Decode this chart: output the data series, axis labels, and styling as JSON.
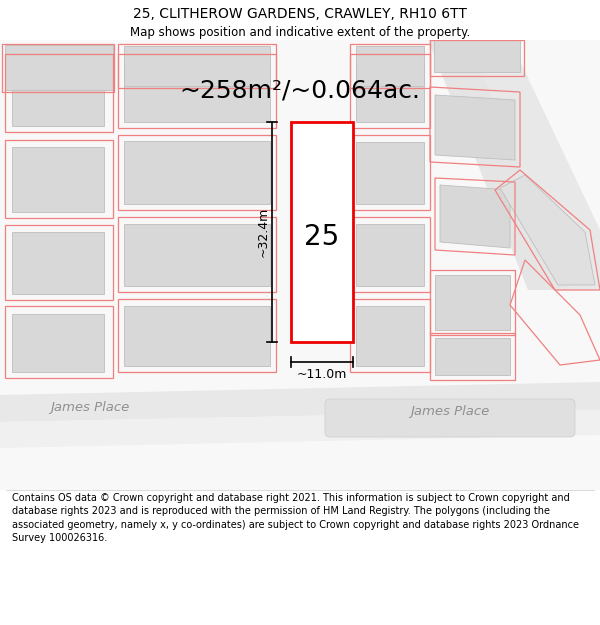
{
  "title_line1": "25, CLITHEROW GARDENS, CRAWLEY, RH10 6TT",
  "title_line2": "Map shows position and indicative extent of the property.",
  "area_label": "~258m²/~0.064ac.",
  "width_label": "~11.0m",
  "height_label": "~32.4m",
  "property_number": "25",
  "street_label1": "James Place",
  "street_label2": "James Place",
  "footer_text": "Contains OS data © Crown copyright and database right 2021. This information is subject to Crown copyright and database rights 2023 and is reproduced with the permission of HM Land Registry. The polygons (including the associated geometry, namely x, y co-ordinates) are subject to Crown copyright and database rights 2023 Ordnance Survey 100026316.",
  "bg_color": "#ffffff",
  "title_fontsize": 10,
  "subtitle_fontsize": 8.5,
  "area_fontsize": 18,
  "footer_fontsize": 7
}
